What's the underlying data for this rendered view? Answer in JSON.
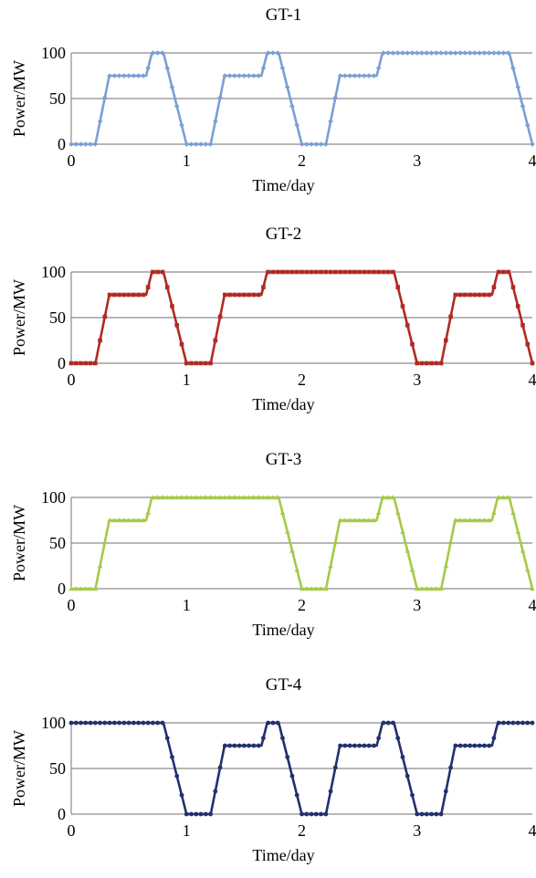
{
  "chart_data": [
    {
      "type": "line",
      "title": "GT-1",
      "xlabel": "Time/day",
      "ylabel": "Power/MW",
      "xlim": [
        0,
        4
      ],
      "ylim": [
        0,
        100
      ],
      "xticks": [
        "0",
        "1",
        "2",
        "3",
        "4"
      ],
      "yticks": [
        "0",
        "50",
        "100"
      ],
      "grid": "horizontal",
      "legend": "none",
      "color": "#7b9fd4",
      "marker": "diamond",
      "series": [
        {
          "x": [
            0,
            0.21,
            0.25,
            0.33,
            0.65,
            0.7,
            0.8,
            1.0,
            1.21,
            1.25,
            1.33,
            1.65,
            1.7,
            1.8,
            2.0,
            2.21,
            2.25,
            2.33,
            2.65,
            2.7,
            3.8,
            4.0
          ],
          "y": [
            0,
            0,
            25,
            75,
            75,
            100,
            100,
            0,
            0,
            25,
            75,
            75,
            100,
            100,
            0,
            0,
            25,
            75,
            75,
            100,
            100,
            0
          ]
        }
      ]
    },
    {
      "type": "line",
      "title": "GT-2",
      "xlabel": "Time/day",
      "ylabel": "Power/MW",
      "xlim": [
        0,
        4
      ],
      "ylim": [
        0,
        100
      ],
      "xticks": [
        "0",
        "1",
        "2",
        "3",
        "4"
      ],
      "yticks": [
        "0",
        "50",
        "100"
      ],
      "grid": "horizontal",
      "legend": "none",
      "color": "#b02a22",
      "marker": "square",
      "series": [
        {
          "x": [
            0,
            0.21,
            0.25,
            0.33,
            0.65,
            0.7,
            0.8,
            1.0,
            1.21,
            1.25,
            1.33,
            1.65,
            1.7,
            2.8,
            3.0,
            3.21,
            3.25,
            3.33,
            3.65,
            3.7,
            3.8,
            4.0
          ],
          "y": [
            0,
            0,
            25,
            75,
            75,
            100,
            100,
            0,
            0,
            25,
            75,
            75,
            100,
            100,
            0,
            0,
            25,
            75,
            75,
            100,
            100,
            0
          ]
        }
      ]
    },
    {
      "type": "line",
      "title": "GT-3",
      "xlabel": "Time/day",
      "ylabel": "Power/MW",
      "xlim": [
        0,
        4
      ],
      "ylim": [
        0,
        100
      ],
      "xticks": [
        "0",
        "1",
        "2",
        "3",
        "4"
      ],
      "yticks": [
        "0",
        "50",
        "100"
      ],
      "grid": "horizontal",
      "legend": "none",
      "color": "#a6c94a",
      "marker": "triangle",
      "series": [
        {
          "x": [
            0,
            0.21,
            0.25,
            0.33,
            0.65,
            0.7,
            1.8,
            2.0,
            2.21,
            2.25,
            2.33,
            2.65,
            2.7,
            2.8,
            3.0,
            3.21,
            3.25,
            3.33,
            3.65,
            3.7,
            3.8,
            4.0
          ],
          "y": [
            0,
            0,
            25,
            75,
            75,
            100,
            100,
            0,
            0,
            25,
            75,
            75,
            100,
            100,
            0,
            0,
            25,
            75,
            75,
            100,
            100,
            0
          ]
        }
      ]
    },
    {
      "type": "line",
      "title": "GT-4",
      "xlabel": "Time/day",
      "ylabel": "Power/MW",
      "xlim": [
        0,
        4
      ],
      "ylim": [
        0,
        100
      ],
      "xticks": [
        "0",
        "1",
        "2",
        "3",
        "4"
      ],
      "yticks": [
        "0",
        "50",
        "100"
      ],
      "grid": "horizontal",
      "legend": "none",
      "color": "#22306e",
      "marker": "circle",
      "series": [
        {
          "x": [
            0,
            0.8,
            1.0,
            1.21,
            1.25,
            1.33,
            1.65,
            1.7,
            1.8,
            2.0,
            2.21,
            2.25,
            2.33,
            2.65,
            2.7,
            2.8,
            3.0,
            3.21,
            3.25,
            3.33,
            3.65,
            3.7,
            4.0
          ],
          "y": [
            100,
            100,
            0,
            0,
            25,
            75,
            75,
            100,
            100,
            0,
            0,
            25,
            75,
            75,
            100,
            100,
            0,
            0,
            25,
            75,
            75,
            100,
            100
          ]
        }
      ]
    }
  ]
}
